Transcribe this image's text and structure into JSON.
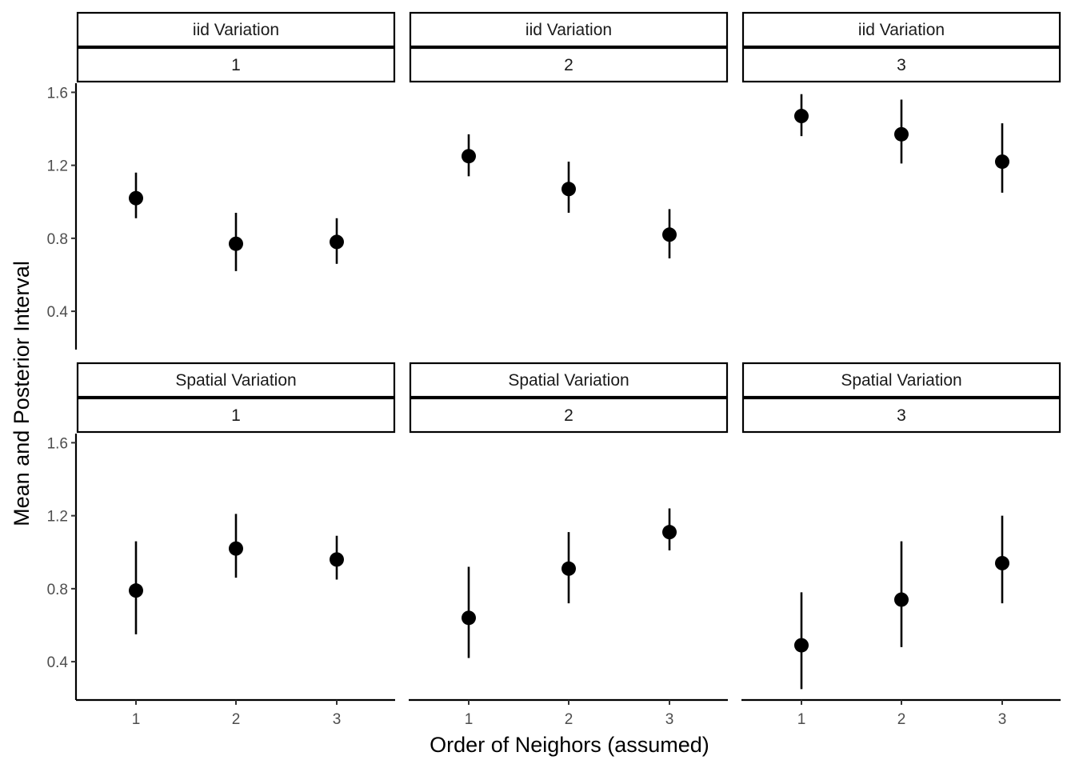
{
  "chart_data": {
    "type": "scatter",
    "title": "",
    "xlabel": "Order of Neighors (assumed)",
    "ylabel": "Mean and Posterior Interval",
    "x_categories": [
      "1",
      "2",
      "3"
    ],
    "ylim": [
      0.19,
      1.65
    ],
    "y_ticks": [
      0.4,
      0.8,
      1.2,
      1.6
    ],
    "y_tick_labels": [
      "0.4",
      "0.8",
      "1.2",
      "1.6"
    ],
    "facets": [
      {
        "strip_top": "iid Variation",
        "strip_bottom": "1",
        "points": [
          {
            "x": "1",
            "mean": 1.02,
            "lower": 0.91,
            "upper": 1.16
          },
          {
            "x": "2",
            "mean": 0.77,
            "lower": 0.62,
            "upper": 0.94
          },
          {
            "x": "3",
            "mean": 0.78,
            "lower": 0.66,
            "upper": 0.91
          }
        ]
      },
      {
        "strip_top": "iid Variation",
        "strip_bottom": "2",
        "points": [
          {
            "x": "1",
            "mean": 1.25,
            "lower": 1.14,
            "upper": 1.37
          },
          {
            "x": "2",
            "mean": 1.07,
            "lower": 0.94,
            "upper": 1.22
          },
          {
            "x": "3",
            "mean": 0.82,
            "lower": 0.69,
            "upper": 0.96
          }
        ]
      },
      {
        "strip_top": "iid Variation",
        "strip_bottom": "3",
        "points": [
          {
            "x": "1",
            "mean": 1.47,
            "lower": 1.36,
            "upper": 1.59
          },
          {
            "x": "2",
            "mean": 1.37,
            "lower": 1.21,
            "upper": 1.56
          },
          {
            "x": "3",
            "mean": 1.22,
            "lower": 1.05,
            "upper": 1.43
          }
        ]
      },
      {
        "strip_top": "Spatial Variation",
        "strip_bottom": "1",
        "points": [
          {
            "x": "1",
            "mean": 0.79,
            "lower": 0.55,
            "upper": 1.06
          },
          {
            "x": "2",
            "mean": 1.02,
            "lower": 0.86,
            "upper": 1.21
          },
          {
            "x": "3",
            "mean": 0.96,
            "lower": 0.85,
            "upper": 1.09
          }
        ]
      },
      {
        "strip_top": "Spatial Variation",
        "strip_bottom": "2",
        "points": [
          {
            "x": "1",
            "mean": 0.64,
            "lower": 0.42,
            "upper": 0.92
          },
          {
            "x": "2",
            "mean": 0.91,
            "lower": 0.72,
            "upper": 1.11
          },
          {
            "x": "3",
            "mean": 1.11,
            "lower": 1.01,
            "upper": 1.24
          }
        ]
      },
      {
        "strip_top": "Spatial Variation",
        "strip_bottom": "3",
        "points": [
          {
            "x": "1",
            "mean": 0.49,
            "lower": 0.25,
            "upper": 0.78
          },
          {
            "x": "2",
            "mean": 0.74,
            "lower": 0.48,
            "upper": 1.06
          },
          {
            "x": "3",
            "mean": 0.94,
            "lower": 0.72,
            "upper": 1.2
          }
        ]
      }
    ]
  }
}
